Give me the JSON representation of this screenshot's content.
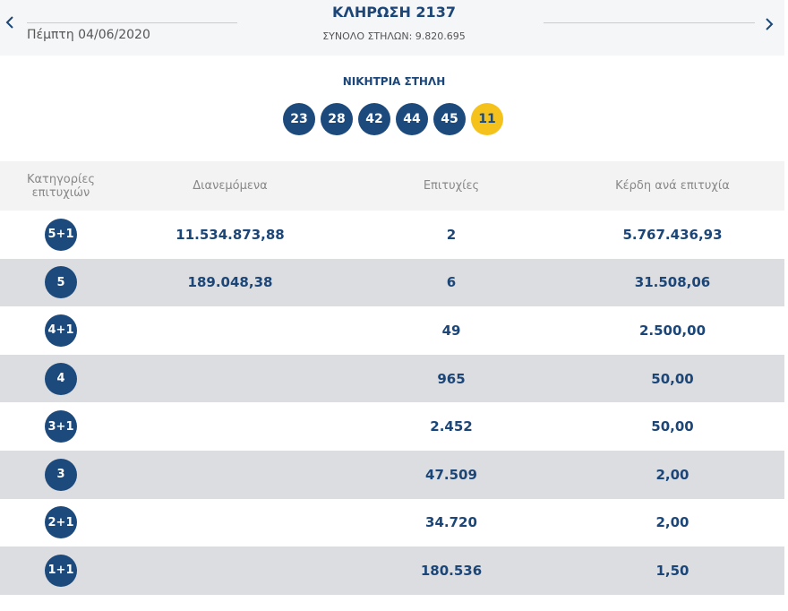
{
  "header": {
    "date": "Πέμπτη 04/06/2020",
    "title": "ΚΛΗΡΩΣΗ 2137",
    "subtitle": "ΣΥΝΟΛΟ ΣΤΗΛΩΝ: 9.820.695"
  },
  "winning": {
    "label": "ΝΙΚΗΤΡΙΑ ΣΤΗΛΗ",
    "numbers": [
      "23",
      "28",
      "42",
      "44",
      "45"
    ],
    "bonus": "11"
  },
  "table": {
    "columns": [
      "Κατηγορίες επιτυχιών",
      "Διανεμόμενα",
      "Επιτυχίες",
      "Κέρδη ανά επιτυχία"
    ],
    "rows": [
      {
        "category": "5+1",
        "distributed": "11.534.873,88",
        "winners": "2",
        "prize": "5.767.436,93"
      },
      {
        "category": "5",
        "distributed": "189.048,38",
        "winners": "6",
        "prize": "31.508,06"
      },
      {
        "category": "4+1",
        "winners": "49",
        "prize": "2.500,00"
      },
      {
        "category": "4",
        "winners": "965",
        "prize": "50,00"
      },
      {
        "category": "3+1",
        "winners": "2.452",
        "prize": "50,00"
      },
      {
        "category": "3",
        "winners": "47.509",
        "prize": "2,00"
      },
      {
        "category": "2+1",
        "winners": "34.720",
        "prize": "2,00"
      },
      {
        "category": "1+1",
        "winners": "180.536",
        "prize": "1,50"
      }
    ]
  }
}
